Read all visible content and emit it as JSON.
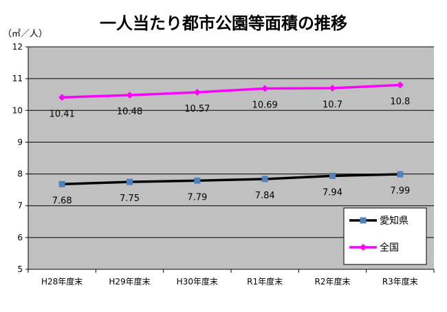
{
  "chart_data": {
    "type": "line",
    "title": "一人当たり都市公園等面積の推移",
    "ylabel": "（㎡／人）",
    "xlabel": "",
    "categories": [
      "H28年度末",
      "H29年度末",
      "H30年度末",
      "R1年度末",
      "R2年度末",
      "R3年度末"
    ],
    "ylim": [
      5,
      12
    ],
    "yticks": [
      5,
      6,
      7,
      8,
      9,
      10,
      11,
      12
    ],
    "grid": true,
    "legend_position": "bottom-right",
    "plot_background": "#c0c0c0",
    "series": [
      {
        "name": "愛知県",
        "values": [
          7.68,
          7.75,
          7.79,
          7.84,
          7.94,
          7.99
        ],
        "labels": [
          "7.68",
          "7.75",
          "7.79",
          "7.84",
          "7.94",
          "7.99"
        ],
        "line_color": "#000000",
        "marker_color": "#4f81bd",
        "marker": "square"
      },
      {
        "name": "全国",
        "values": [
          10.41,
          10.48,
          10.57,
          10.69,
          10.7,
          10.8
        ],
        "labels": [
          "10.41",
          "10.48",
          "10.57",
          "10.69",
          "10.7",
          "10.8"
        ],
        "line_color": "#ff00ff",
        "marker_color": "#ff00ff",
        "marker": "diamond"
      }
    ]
  }
}
